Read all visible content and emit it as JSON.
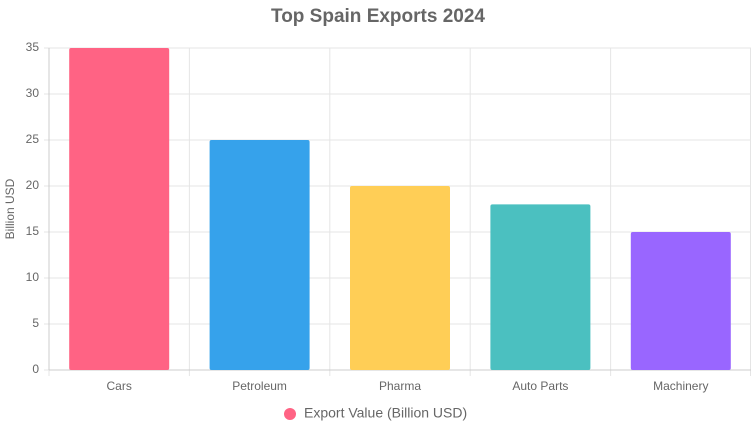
{
  "chart_data": {
    "type": "bar",
    "title": "Top Spain Exports 2024",
    "y_label": "Billion USD",
    "categories": [
      "Cars",
      "Petroleum",
      "Pharma",
      "Auto Parts",
      "Machinery"
    ],
    "series": [
      {
        "name": "Export Value (Billion USD)",
        "colors": [
          "#ff6384",
          "#36a2eb",
          "#ffce56",
          "#4bc0c0",
          "#9966ff"
        ],
        "values": [
          35,
          25,
          20,
          18,
          15
        ]
      }
    ],
    "ylim": [
      0,
      35
    ],
    "yticks": [
      0,
      5,
      10,
      15,
      20,
      25,
      30,
      35
    ],
    "grid": true,
    "legend": "bottom"
  }
}
